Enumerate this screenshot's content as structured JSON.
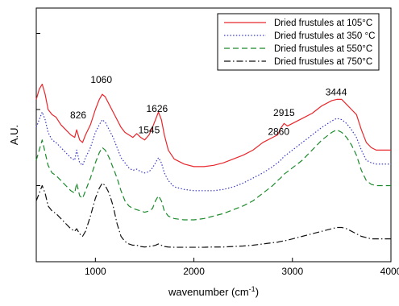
{
  "chart_data": {
    "type": "line",
    "title": "",
    "xlabel_main": "wavenumber (cm",
    "xlabel_sup": "-1",
    "xlabel_tail": ")",
    "ylabel": "A.U.",
    "xlim": [
      400,
      4000
    ],
    "ylim": [
      0,
      1
    ],
    "x_ticks": [
      1000,
      2000,
      3000,
      4000
    ],
    "y_ticks": [
      0.0,
      0.3,
      0.6,
      0.9
    ],
    "y_tick_labels_shown": false,
    "grid": false,
    "legend_position": "top-right",
    "annotations": [
      {
        "text": "1060",
        "x": 1060,
        "y": 0.705
      },
      {
        "text": "826",
        "x": 826,
        "y": 0.565
      },
      {
        "text": "1545",
        "x": 1545,
        "y": 0.507
      },
      {
        "text": "1626",
        "x": 1626,
        "y": 0.59
      },
      {
        "text": "2860",
        "x": 2860,
        "y": 0.5
      },
      {
        "text": "2915",
        "x": 2915,
        "y": 0.575
      },
      {
        "text": "3444",
        "x": 3444,
        "y": 0.655
      }
    ],
    "series": [
      {
        "name": "Dried frustules at 105°C",
        "color": "#e8262b",
        "dash": "solid",
        "x": [
          400,
          430,
          460,
          490,
          520,
          560,
          600,
          650,
          700,
          750,
          790,
          810,
          840,
          870,
          900,
          950,
          1000,
          1040,
          1070,
          1100,
          1140,
          1180,
          1220,
          1260,
          1300,
          1340,
          1380,
          1420,
          1460,
          1500,
          1545,
          1580,
          1610,
          1640,
          1670,
          1700,
          1740,
          1800,
          1900,
          2000,
          2100,
          2200,
          2300,
          2400,
          2500,
          2600,
          2700,
          2800,
          2850,
          2880,
          2915,
          2950,
          3000,
          3100,
          3200,
          3300,
          3400,
          3450,
          3500,
          3550,
          3600,
          3650,
          3700,
          3750,
          3800,
          3850,
          3900,
          4000
        ],
        "y": [
          0.64,
          0.68,
          0.7,
          0.66,
          0.6,
          0.58,
          0.57,
          0.54,
          0.52,
          0.5,
          0.49,
          0.52,
          0.48,
          0.47,
          0.5,
          0.54,
          0.6,
          0.64,
          0.66,
          0.65,
          0.62,
          0.59,
          0.56,
          0.53,
          0.51,
          0.5,
          0.49,
          0.505,
          0.49,
          0.48,
          0.5,
          0.53,
          0.56,
          0.59,
          0.56,
          0.5,
          0.44,
          0.405,
          0.385,
          0.375,
          0.375,
          0.38,
          0.39,
          0.405,
          0.42,
          0.44,
          0.47,
          0.49,
          0.5,
          0.525,
          0.545,
          0.535,
          0.545,
          0.565,
          0.585,
          0.615,
          0.635,
          0.64,
          0.64,
          0.62,
          0.6,
          0.58,
          0.52,
          0.47,
          0.45,
          0.44,
          0.44,
          0.44
        ]
      },
      {
        "name": "Dried frustules at 350 °C",
        "color": "#3a3bc4",
        "dash": "dotted",
        "x": [
          400,
          430,
          460,
          490,
          520,
          560,
          600,
          650,
          700,
          750,
          790,
          810,
          840,
          870,
          900,
          950,
          1000,
          1040,
          1070,
          1100,
          1140,
          1180,
          1220,
          1260,
          1300,
          1340,
          1380,
          1420,
          1460,
          1500,
          1545,
          1580,
          1610,
          1640,
          1670,
          1700,
          1740,
          1800,
          1900,
          2000,
          2100,
          2200,
          2300,
          2400,
          2500,
          2600,
          2700,
          2800,
          2850,
          2880,
          2915,
          2950,
          3000,
          3100,
          3200,
          3300,
          3400,
          3450,
          3500,
          3550,
          3600,
          3650,
          3700,
          3750,
          3800,
          3850,
          3900,
          4000
        ],
        "y": [
          0.53,
          0.56,
          0.59,
          0.56,
          0.51,
          0.48,
          0.47,
          0.45,
          0.43,
          0.41,
          0.4,
          0.44,
          0.39,
          0.38,
          0.41,
          0.45,
          0.51,
          0.54,
          0.56,
          0.55,
          0.52,
          0.49,
          0.45,
          0.41,
          0.39,
          0.37,
          0.36,
          0.365,
          0.355,
          0.35,
          0.355,
          0.37,
          0.39,
          0.41,
          0.39,
          0.35,
          0.32,
          0.295,
          0.285,
          0.28,
          0.28,
          0.28,
          0.285,
          0.295,
          0.31,
          0.33,
          0.35,
          0.375,
          0.39,
          0.4,
          0.415,
          0.425,
          0.44,
          0.47,
          0.5,
          0.53,
          0.555,
          0.565,
          0.56,
          0.545,
          0.52,
          0.49,
          0.44,
          0.4,
          0.39,
          0.385,
          0.385,
          0.385
        ]
      },
      {
        "name": "Dried frustules at 550°C",
        "color": "#1a8a2a",
        "dash": "dashed",
        "x": [
          400,
          430,
          460,
          490,
          520,
          560,
          600,
          650,
          700,
          750,
          790,
          810,
          840,
          870,
          900,
          950,
          1000,
          1040,
          1070,
          1100,
          1140,
          1180,
          1220,
          1260,
          1300,
          1340,
          1380,
          1420,
          1460,
          1500,
          1545,
          1580,
          1610,
          1640,
          1670,
          1700,
          1740,
          1800,
          1900,
          2000,
          2100,
          2200,
          2300,
          2400,
          2500,
          2600,
          2700,
          2800,
          2850,
          2880,
          2915,
          2950,
          3000,
          3100,
          3200,
          3300,
          3400,
          3450,
          3500,
          3550,
          3600,
          3650,
          3700,
          3750,
          3800,
          3850,
          3900,
          4000
        ],
        "y": [
          0.4,
          0.44,
          0.48,
          0.43,
          0.38,
          0.35,
          0.34,
          0.32,
          0.3,
          0.28,
          0.27,
          0.31,
          0.26,
          0.25,
          0.28,
          0.33,
          0.39,
          0.43,
          0.45,
          0.44,
          0.41,
          0.37,
          0.33,
          0.28,
          0.24,
          0.22,
          0.21,
          0.205,
          0.2,
          0.195,
          0.2,
          0.21,
          0.24,
          0.26,
          0.24,
          0.2,
          0.18,
          0.17,
          0.165,
          0.165,
          0.17,
          0.18,
          0.19,
          0.205,
          0.22,
          0.24,
          0.27,
          0.3,
          0.32,
          0.33,
          0.345,
          0.355,
          0.37,
          0.4,
          0.44,
          0.48,
          0.51,
          0.52,
          0.51,
          0.49,
          0.46,
          0.42,
          0.36,
          0.32,
          0.305,
          0.3,
          0.3,
          0.3
        ]
      },
      {
        "name": "Dried frustules at 750°C",
        "color": "#111111",
        "dash": "dashdot",
        "x": [
          400,
          430,
          460,
          490,
          520,
          560,
          600,
          650,
          700,
          750,
          790,
          810,
          840,
          870,
          900,
          950,
          1000,
          1040,
          1070,
          1100,
          1140,
          1180,
          1220,
          1260,
          1300,
          1340,
          1380,
          1420,
          1460,
          1500,
          1545,
          1580,
          1610,
          1640,
          1670,
          1700,
          1740,
          1800,
          1900,
          2000,
          2100,
          2200,
          2300,
          2400,
          2500,
          2600,
          2700,
          2800,
          2850,
          2880,
          2915,
          2950,
          3000,
          3100,
          3200,
          3300,
          3400,
          3450,
          3500,
          3550,
          3600,
          3650,
          3700,
          3750,
          3800,
          3850,
          3900,
          4000
        ],
        "y": [
          0.24,
          0.27,
          0.3,
          0.27,
          0.22,
          0.2,
          0.19,
          0.17,
          0.15,
          0.13,
          0.12,
          0.13,
          0.11,
          0.1,
          0.12,
          0.18,
          0.25,
          0.29,
          0.31,
          0.3,
          0.27,
          0.22,
          0.15,
          0.1,
          0.08,
          0.07,
          0.065,
          0.065,
          0.06,
          0.058,
          0.06,
          0.062,
          0.065,
          0.07,
          0.065,
          0.06,
          0.058,
          0.057,
          0.057,
          0.057,
          0.057,
          0.058,
          0.058,
          0.06,
          0.062,
          0.065,
          0.07,
          0.075,
          0.077,
          0.08,
          0.082,
          0.085,
          0.09,
          0.1,
          0.11,
          0.12,
          0.13,
          0.135,
          0.135,
          0.13,
          0.12,
          0.11,
          0.1,
          0.095,
          0.09,
          0.09,
          0.09,
          0.09
        ]
      }
    ]
  }
}
